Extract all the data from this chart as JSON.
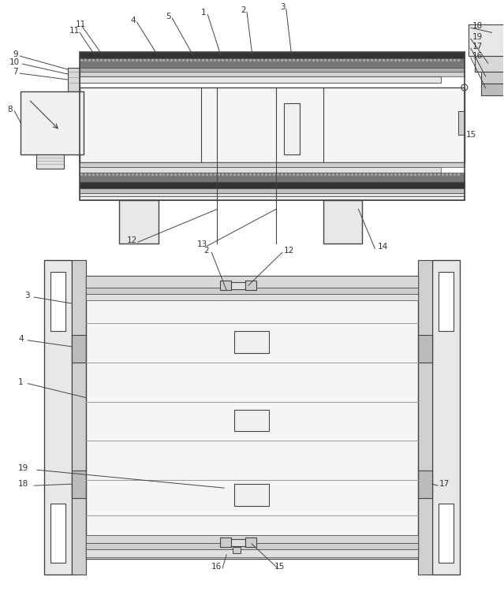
{
  "fig_width": 6.39,
  "fig_height": 7.74,
  "bg_color": "#ffffff",
  "lc": "#444444",
  "gc": "#999999",
  "dark_fill": "#555555",
  "med_fill": "#aaaaaa",
  "light_fill": "#cccccc",
  "very_light": "#e8e8e8",
  "white_fill": "#ffffff",
  "hatch_fill": "#888888"
}
